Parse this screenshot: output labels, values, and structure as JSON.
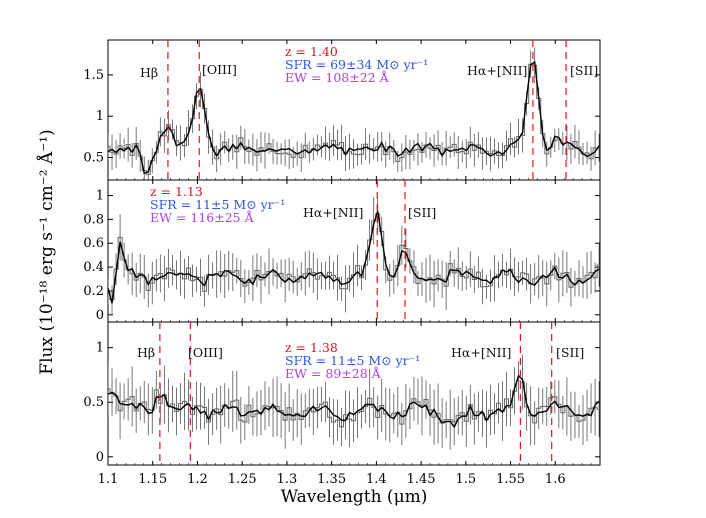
{
  "chart_data": {
    "type": "line",
    "xlabel": "Wavelength (μm)",
    "ylabel": "Flux (10⁻¹⁸ erg s⁻¹ cm⁻² Å⁻¹)",
    "xlim": [
      1.1,
      1.65
    ],
    "xticks": [
      "1.1",
      "1.15",
      "1.2",
      "1.25",
      "1.3",
      "1.35",
      "1.4",
      "1.45",
      "1.5",
      "1.55",
      "1.6"
    ],
    "colors": {
      "redshift": "#e8111e",
      "sfr": "#2f55e0",
      "ew": "#b040f0",
      "marker": "#e8111e"
    },
    "panels": [
      {
        "ylim": [
          0.3,
          1.85
        ],
        "yticks": [
          "0.5",
          "1",
          "1.5"
        ],
        "z_text": "z = 1.40",
        "sfr_text": "SFR = 69±34 M⊙ yr⁻¹",
        "ew_text": "EW = 108±22 Å",
        "lines": [
          {
            "name": "Hβ",
            "x": 1.167,
            "text": "Hβ"
          },
          {
            "name": "[OIII]",
            "x": 1.202,
            "text": "[OIII]"
          },
          {
            "name": "Hα+[NII]",
            "x": 1.575,
            "text": "Hα+[NII]"
          },
          {
            "name": "[SII]",
            "x": 1.612,
            "text": "[SII]"
          }
        ],
        "baseline": 0.6,
        "peaks": [
          [
            1.167,
            0.35,
            0.006
          ],
          [
            1.202,
            0.8,
            0.006
          ],
          [
            1.575,
            1.15,
            0.006
          ],
          [
            1.6,
            0.1,
            0.005
          ]
        ],
        "dips": [
          [
            1.143,
            0.35,
            0.004
          ]
        ],
        "noise": 0.09,
        "err": [
          0.12,
          0.22
        ],
        "seed": 3
      },
      {
        "ylim": [
          -0.01,
          1.08
        ],
        "yticks": [
          "0",
          "0.2",
          "0.4",
          "0.6",
          "0.8",
          "1"
        ],
        "z_text": "z = 1.13",
        "sfr_text": "SFR = 11±5 M⊙ yr⁻¹",
        "ew_text": "EW = 116±25 Å",
        "lines": [
          {
            "name": "Hα+[NII]",
            "x": 1.401,
            "text": "Hα+[NII]"
          },
          {
            "name": "[SII]",
            "x": 1.432,
            "text": "[SII]"
          }
        ],
        "baseline": 0.32,
        "peaks": [
          [
            1.113,
            0.3,
            0.004
          ],
          [
            1.401,
            0.55,
            0.006
          ],
          [
            1.43,
            0.22,
            0.005
          ]
        ],
        "dips": [
          [
            1.105,
            0.2,
            0.004
          ]
        ],
        "noise": 0.07,
        "err": [
          0.1,
          0.2
        ],
        "seed": 11
      },
      {
        "ylim": [
          -0.02,
          1.18
        ],
        "yticks": [
          "0",
          "0.5",
          "1"
        ],
        "z_text": "z = 1.38",
        "sfr_text": "SFR = 11±5 M⊙ yr⁻¹",
        "ew_text": "EW = 89±28 Å",
        "lines": [
          {
            "name": "Hβ",
            "x": 1.158,
            "text": "Hβ"
          },
          {
            "name": "[OIII]",
            "x": 1.192,
            "text": "[OIII]"
          },
          {
            "name": "Hα+[NII]",
            "x": 1.561,
            "text": "Hα+[NII]"
          },
          {
            "name": "[SII]",
            "x": 1.596,
            "text": "[SII]"
          }
        ],
        "baseline": 0.42,
        "peaks": [
          [
            1.158,
            0.22,
            0.005
          ],
          [
            1.105,
            0.2,
            0.006
          ],
          [
            1.561,
            0.38,
            0.005
          ]
        ],
        "dips": [
          [
            1.49,
            0.15,
            0.008
          ]
        ],
        "noise": 0.09,
        "err": [
          0.15,
          0.28
        ],
        "seed": 23
      }
    ]
  }
}
